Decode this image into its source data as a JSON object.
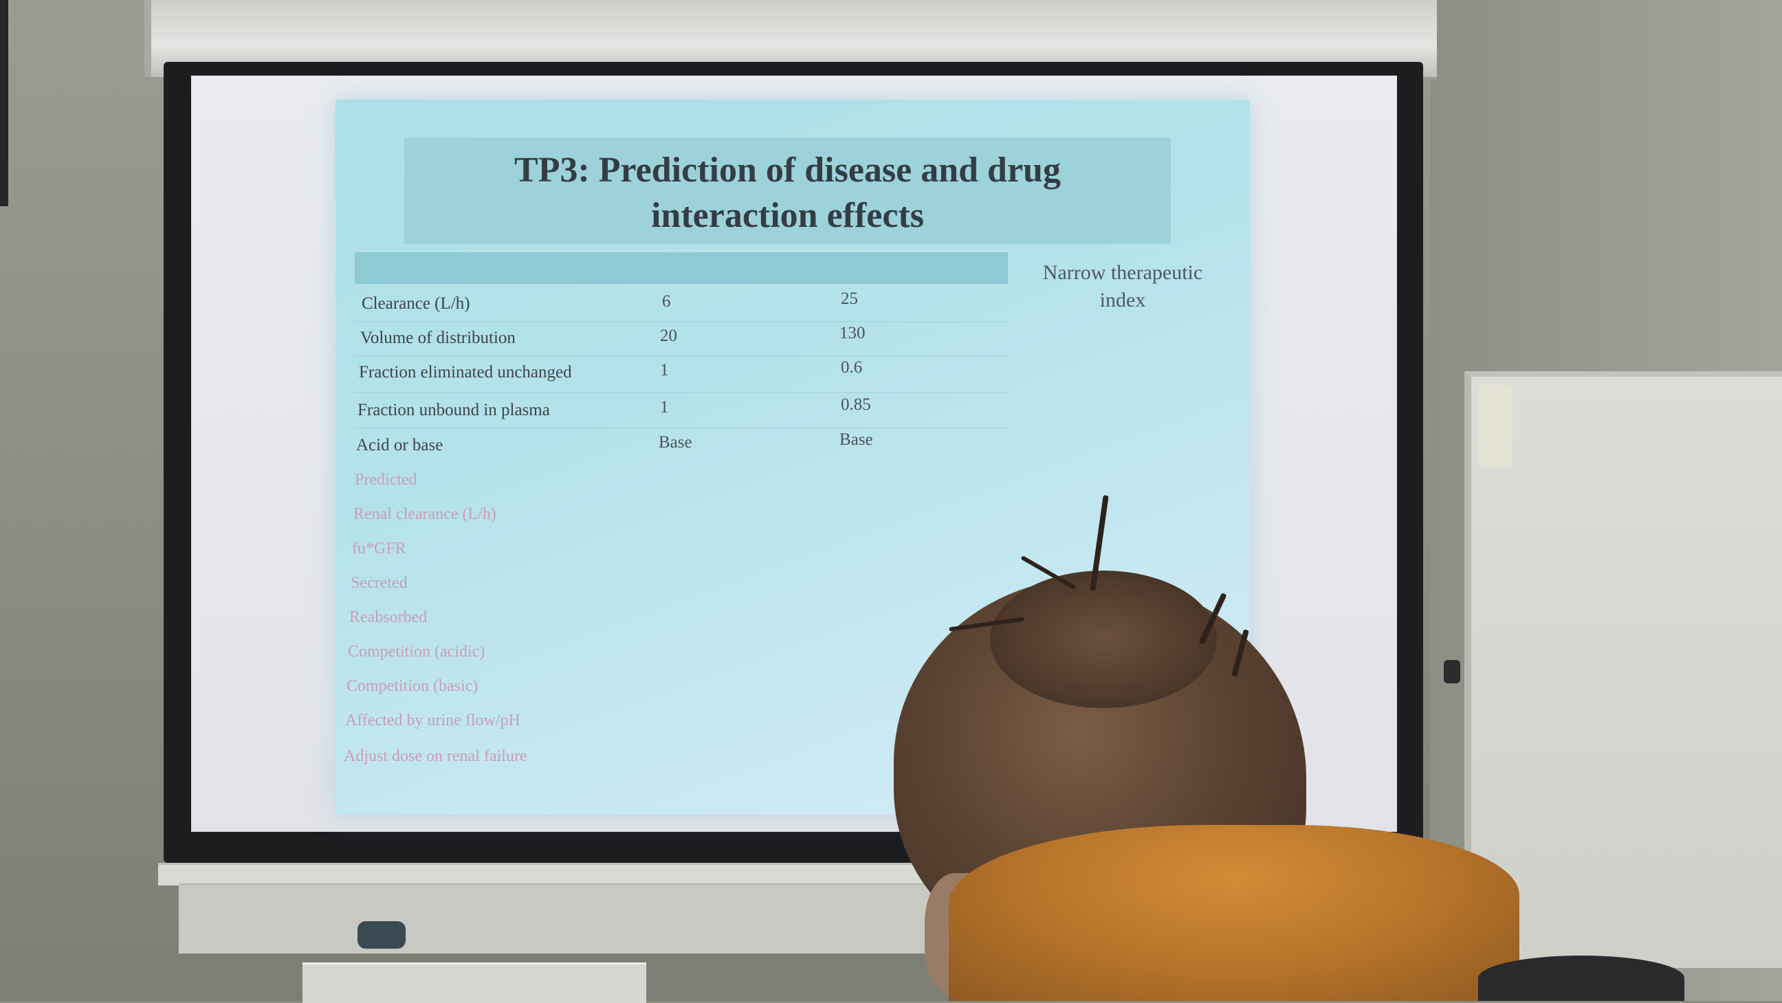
{
  "slide": {
    "title_line1": "TP3: Prediction of disease and drug",
    "title_line2": "interaction effects",
    "side_note": "Narrow therapeutic index",
    "rows": [
      {
        "label": "Clearance (L/h)",
        "col1": "6",
        "col2": "25"
      },
      {
        "label": "Volume of distribution",
        "col1": "20",
        "col2": "130"
      },
      {
        "label": "Fraction eliminated unchanged",
        "col1": "1",
        "col2": "0.6"
      },
      {
        "label": "Fraction unbound in plasma",
        "col1": "1",
        "col2": "0.85"
      },
      {
        "label": "Acid or base",
        "col1": "Base",
        "col2": "Base"
      }
    ],
    "pink_rows": [
      "Predicted",
      "Renal clearance (L/h)",
      "fu*GFR",
      "Secreted",
      "Reabsorbed",
      "Competition (acidic)",
      "Competition (basic)",
      "Affected by urine flow/pH",
      "Adjust dose on renal failure"
    ]
  },
  "colors": {
    "slide_background": "#b5e2ea",
    "title_band": "#9dd2da",
    "title_text": "#343d44",
    "pink_text": "#c8a0b6",
    "scarf": "#c98331"
  }
}
